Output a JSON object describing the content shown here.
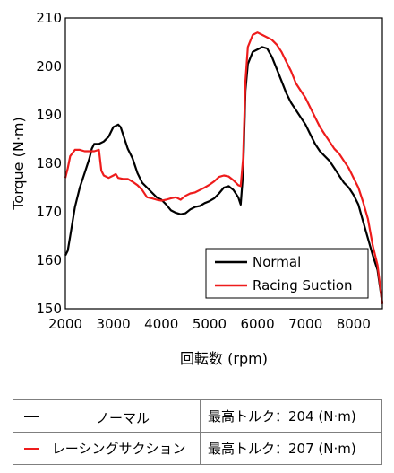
{
  "chart_data": {
    "type": "line",
    "title": "",
    "xlabel": "回転数 (rpm)",
    "ylabel": "Torque (N·m)",
    "xlim": [
      2000,
      8600
    ],
    "ylim": [
      150,
      210
    ],
    "xticks": [
      2000,
      3000,
      4000,
      5000,
      6000,
      7000,
      8000
    ],
    "yticks": [
      150,
      160,
      170,
      180,
      190,
      200,
      210
    ],
    "grid": false,
    "legend_position": "bottom-right",
    "series": [
      {
        "name": "Normal",
        "color": "#000000",
        "x": [
          2000,
          2050,
          2100,
          2200,
          2300,
          2400,
          2500,
          2550,
          2600,
          2700,
          2800,
          2900,
          3000,
          3100,
          3150,
          3200,
          3300,
          3400,
          3500,
          3600,
          3700,
          3800,
          3900,
          4000,
          4100,
          4200,
          4300,
          4400,
          4500,
          4600,
          4700,
          4800,
          4900,
          5000,
          5100,
          5200,
          5300,
          5400,
          5500,
          5600,
          5650,
          5700,
          5750,
          5800,
          5900,
          6000,
          6100,
          6200,
          6300,
          6400,
          6500,
          6600,
          6700,
          6800,
          6900,
          7000,
          7100,
          7200,
          7300,
          7400,
          7500,
          7600,
          7700,
          7800,
          7900,
          8000,
          8100,
          8200,
          8300,
          8400,
          8500,
          8600
        ],
        "y": [
          161,
          162,
          165,
          171,
          175,
          178,
          181,
          183,
          184,
          184,
          184.5,
          185.5,
          187.5,
          188,
          187.5,
          186,
          183,
          181,
          178,
          176,
          175,
          174,
          173,
          172.5,
          171.5,
          170.3,
          169.8,
          169.5,
          169.7,
          170.5,
          171,
          171.2,
          171.8,
          172.2,
          172.8,
          173.8,
          175,
          175.3,
          174.5,
          173,
          171.5,
          178,
          195,
          200.5,
          203,
          203.5,
          204,
          203.7,
          202,
          199.5,
          197,
          194.5,
          192.5,
          191,
          189.5,
          188,
          186,
          184,
          182.5,
          181.5,
          180.5,
          179,
          177.5,
          176,
          175,
          173.5,
          171.5,
          168,
          164.5,
          161,
          158,
          151
        ]
      },
      {
        "name": "Racing Suction",
        "color": "#ee1c1c",
        "x": [
          2000,
          2050,
          2100,
          2200,
          2300,
          2400,
          2500,
          2600,
          2700,
          2750,
          2800,
          2900,
          3000,
          3050,
          3100,
          3200,
          3300,
          3400,
          3500,
          3600,
          3700,
          3800,
          3900,
          4000,
          4100,
          4200,
          4300,
          4400,
          4500,
          4600,
          4700,
          4800,
          4900,
          5000,
          5100,
          5200,
          5300,
          5400,
          5500,
          5600,
          5650,
          5700,
          5750,
          5800,
          5900,
          6000,
          6100,
          6200,
          6300,
          6400,
          6500,
          6600,
          6700,
          6800,
          6900,
          7000,
          7100,
          7200,
          7300,
          7400,
          7500,
          7600,
          7700,
          7800,
          7900,
          8000,
          8100,
          8200,
          8300,
          8400,
          8500,
          8600
        ],
        "y": [
          177,
          179,
          181.5,
          182.8,
          182.8,
          182.5,
          182.5,
          182.5,
          182.8,
          178.5,
          177.5,
          177,
          177.5,
          177.8,
          177,
          176.8,
          176.8,
          176.2,
          175.5,
          174.5,
          173,
          172.8,
          172.5,
          172.3,
          172.5,
          172.8,
          173,
          172.5,
          173.3,
          173.8,
          174,
          174.5,
          175,
          175.6,
          176.3,
          177.2,
          177.5,
          177.3,
          176.5,
          175.5,
          175.3,
          181,
          197,
          204,
          206.5,
          207,
          206.5,
          206,
          205.5,
          204.5,
          203,
          201,
          199,
          196.5,
          195,
          193.5,
          191.5,
          189.5,
          187.5,
          186,
          184.5,
          183,
          182,
          180.5,
          179,
          177,
          175,
          172,
          168.5,
          163,
          159,
          151
        ]
      }
    ]
  },
  "table": {
    "rows": [
      {
        "name": "ノーマル",
        "value": "最高トルク：204 (N·m)",
        "color": "#000000"
      },
      {
        "name": "レーシングサクション",
        "value": "最高トルク：207 (N·m)",
        "color": "#ee1c1c"
      }
    ]
  }
}
